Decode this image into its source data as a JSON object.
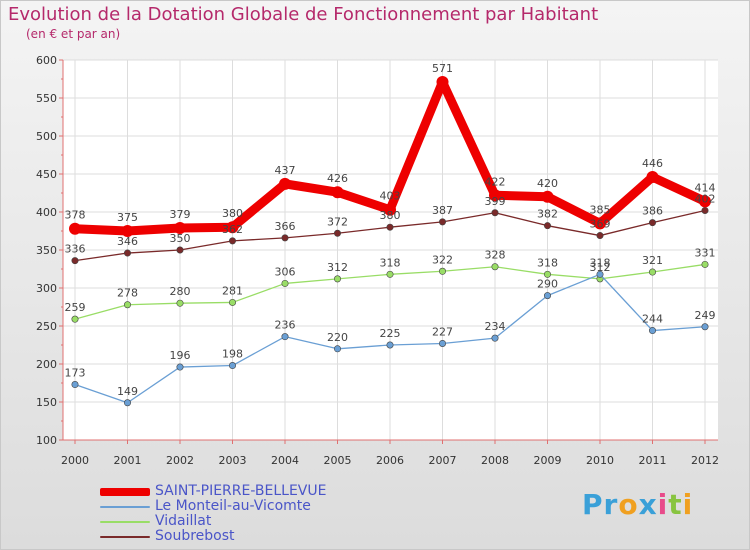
{
  "chart_data": {
    "type": "line",
    "title": "Evolution de la Dotation Globale de Fonctionnement par Habitant",
    "subtitle": "(en € et par an)",
    "xlabel": "",
    "ylabel": "",
    "ylim": [
      100,
      600
    ],
    "yticks": [
      100,
      150,
      200,
      250,
      300,
      350,
      400,
      450,
      500,
      550,
      600
    ],
    "categories": [
      "2000",
      "2001",
      "2002",
      "2003",
      "2004",
      "2005",
      "2006",
      "2007",
      "2008",
      "2009",
      "2010",
      "2011",
      "2012"
    ],
    "grid": true,
    "legend_position": "bottom-left",
    "series": [
      {
        "name": "SAINT-PIERRE-BELLEVUE",
        "color": "#ee0000",
        "values": [
          378,
          375,
          379,
          380,
          437,
          426,
          403,
          571,
          422,
          420,
          385,
          446,
          414
        ]
      },
      {
        "name": "Le Monteil-au-Vicomte",
        "color": "#6a9fd4",
        "values": [
          173,
          149,
          196,
          198,
          236,
          220,
          225,
          227,
          234,
          290,
          318,
          244,
          249
        ]
      },
      {
        "name": "Vidaillat",
        "color": "#99dd66",
        "values": [
          259,
          278,
          280,
          281,
          306,
          312,
          318,
          322,
          328,
          318,
          312,
          321,
          331
        ]
      },
      {
        "name": "Soubrebost",
        "color": "#7a2a2a",
        "values": [
          336,
          346,
          350,
          362,
          366,
          372,
          380,
          387,
          399,
          382,
          369,
          386,
          402
        ]
      }
    ]
  },
  "logo": {
    "text": "Proxiti",
    "letters": [
      "P",
      "r",
      "o",
      "x",
      "i",
      "t",
      "i"
    ],
    "colors": [
      "#3aa0d8",
      "#3aa0d8",
      "#f0a020",
      "#3aa0d8",
      "#e84b8a",
      "#88c440",
      "#f0a020"
    ]
  }
}
